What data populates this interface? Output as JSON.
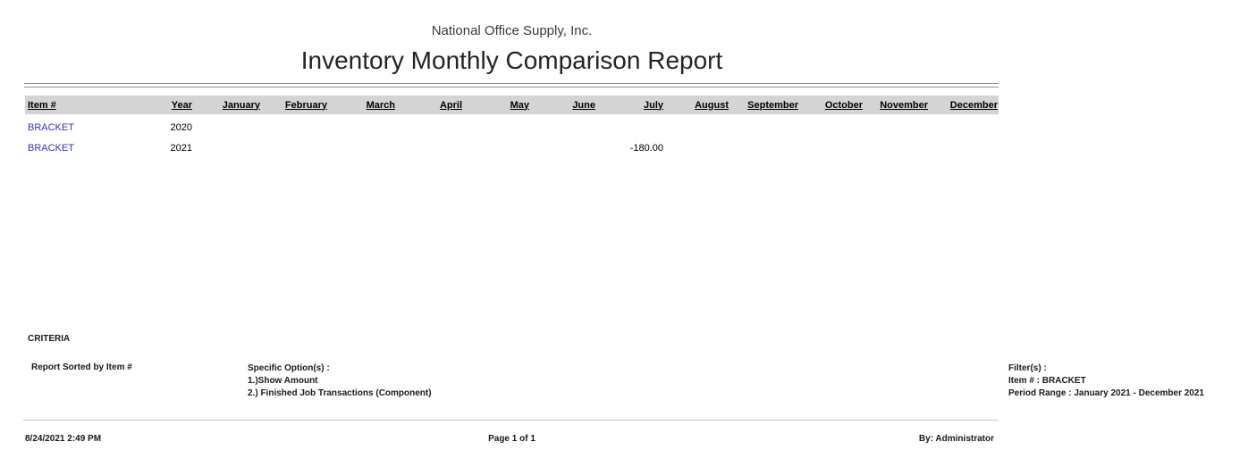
{
  "header": {
    "company": "National Office Supply, Inc.",
    "title": "Inventory Monthly Comparison Report"
  },
  "table": {
    "columns": [
      "Item #",
      "Year",
      "January",
      "February",
      "March",
      "April",
      "May",
      "June",
      "July",
      "August",
      "September",
      "October",
      "November",
      "December"
    ],
    "rows": [
      {
        "item": "BRACKET",
        "year": "2020",
        "months": [
          "",
          "",
          "",
          "",
          "",
          "",
          "",
          "",
          "",
          "",
          "",
          ""
        ]
      },
      {
        "item": "BRACKET",
        "year": "2021",
        "months": [
          "",
          "",
          "",
          "",
          "",
          "",
          "-180.00",
          "",
          "",
          "",
          "",
          ""
        ]
      }
    ]
  },
  "criteria": {
    "label": "CRITERIA",
    "sorted_by": "Report Sorted by Item #",
    "options_title": "Specific Option(s) :",
    "options": [
      "1.)Show Amount",
      "2.) Finished Job Transactions (Component)"
    ],
    "filters_title": "Filter(s) :",
    "filters": [
      "Item # : BRACKET",
      "Period Range : January 2021 - December 2021"
    ]
  },
  "footer": {
    "datetime": "8/24/2021 2:49 PM",
    "page": "Page 1 of 1",
    "by": "By: Administrator"
  },
  "colors": {
    "link": "#3333cc",
    "header_band": "#d4d4d4",
    "rule": "#909090"
  }
}
